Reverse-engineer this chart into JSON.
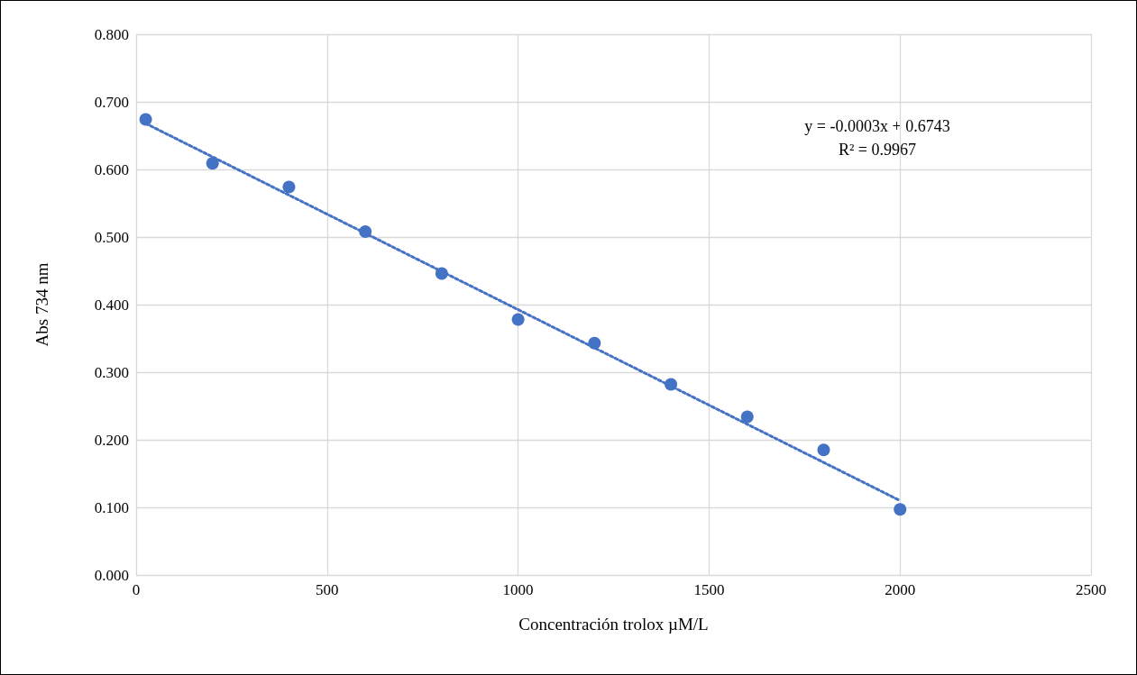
{
  "chart_data": {
    "type": "scatter",
    "xlabel": "Concentración trolox µM/L",
    "ylabel": "Abs 734 nm",
    "x": [
      25,
      200,
      400,
      600,
      800,
      1000,
      1200,
      1400,
      1600,
      1800,
      2000
    ],
    "series": [
      {
        "color": "#4472c4",
        "marker": "circle",
        "values": [
          0.674,
          0.609,
          0.574,
          0.508,
          0.446,
          0.378,
          0.343,
          0.282,
          0.234,
          0.185,
          0.097
        ]
      },
      {
        "type": "line",
        "color": "#4472c4",
        "line_style": "dotted",
        "marker": "none",
        "x": [
          25,
          2000
        ],
        "values": [
          0.668,
          0.11
        ]
      }
    ],
    "xlim": [
      0,
      2500
    ],
    "xticks": [
      0,
      500,
      1000,
      1500,
      2000,
      2500
    ],
    "ylim": [
      0,
      0.8
    ],
    "yticks": [
      {
        "value": 0,
        "label": "0.000"
      },
      {
        "value": 0.1,
        "label": "0.100"
      },
      {
        "value": 0.2,
        "label": "0.200"
      },
      {
        "value": 0.3,
        "label": "0.300"
      },
      {
        "value": 0.4,
        "label": "0.400"
      },
      {
        "value": 0.5,
        "label": "0.500"
      },
      {
        "value": 0.6,
        "label": "0.600"
      },
      {
        "value": 0.7,
        "label": "0.700"
      },
      {
        "value": 0.8,
        "label": "0.800"
      }
    ],
    "grid": true,
    "annotations": [
      "y = -0.0003x + 0.6743",
      "R² = 0.9967"
    ]
  }
}
